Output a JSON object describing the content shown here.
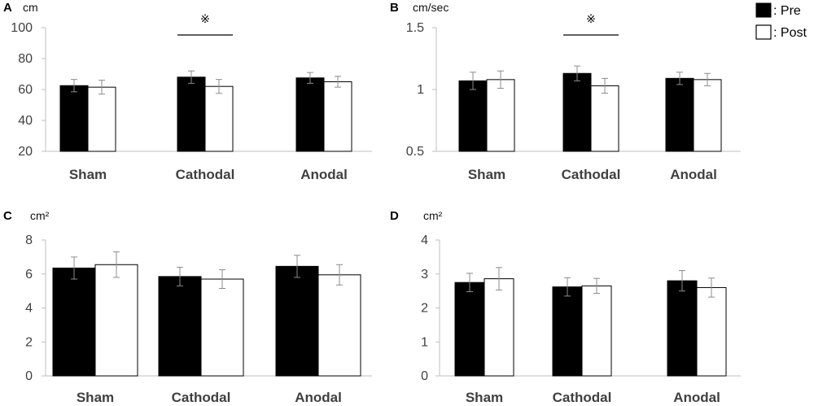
{
  "legend": {
    "items": [
      {
        "label": ": Pre",
        "color": "#000000"
      },
      {
        "label": ": Post",
        "color": "#ffffff"
      }
    ]
  },
  "chart_data": [
    {
      "panel": "A",
      "type": "bar",
      "unit": "cm",
      "categories": [
        "Sham",
        "Cathodal",
        "Anodal"
      ],
      "ylim": [
        20,
        100
      ],
      "yticks": [
        20,
        40,
        60,
        80,
        100
      ],
      "ytick_labels": [
        "20",
        "40",
        "60",
        "80",
        "100"
      ],
      "series": [
        {
          "name": "Pre",
          "values": [
            62.5,
            68,
            67.5
          ],
          "errors": [
            4,
            4,
            3.5
          ]
        },
        {
          "name": "Post",
          "values": [
            61.5,
            62,
            65
          ],
          "errors": [
            4.5,
            4.5,
            3.5
          ]
        }
      ],
      "significance": {
        "category": "Cathodal",
        "symbol": "※"
      }
    },
    {
      "panel": "B",
      "type": "bar",
      "unit": "cm/sec",
      "categories": [
        "Sham",
        "Cathodal",
        "Anodal"
      ],
      "ylim": [
        0.5,
        1.5
      ],
      "yticks": [
        0.5,
        1.0,
        1.5
      ],
      "ytick_labels": [
        "0.5",
        "1",
        "1.5"
      ],
      "series": [
        {
          "name": "Pre",
          "values": [
            1.07,
            1.13,
            1.09
          ],
          "errors": [
            0.07,
            0.06,
            0.05
          ]
        },
        {
          "name": "Post",
          "values": [
            1.08,
            1.03,
            1.08
          ],
          "errors": [
            0.07,
            0.06,
            0.05
          ]
        }
      ],
      "significance": {
        "category": "Cathodal",
        "symbol": "※"
      }
    },
    {
      "panel": "C",
      "type": "bar",
      "unit": "cm²",
      "categories": [
        "Sham",
        "Cathodal",
        "Anodal"
      ],
      "ylim": [
        0,
        8
      ],
      "yticks": [
        0,
        2,
        4,
        6,
        8
      ],
      "ytick_labels": [
        "0",
        "2",
        "4",
        "6",
        "8"
      ],
      "series": [
        {
          "name": "Pre",
          "values": [
            6.35,
            5.85,
            6.45
          ],
          "errors": [
            0.65,
            0.55,
            0.65
          ]
        },
        {
          "name": "Post",
          "values": [
            6.55,
            5.7,
            5.95
          ],
          "errors": [
            0.75,
            0.55,
            0.6
          ]
        }
      ]
    },
    {
      "panel": "D",
      "type": "bar",
      "unit": "cm²",
      "categories": [
        "Sham",
        "Cathodal",
        "Anodal"
      ],
      "ylim": [
        0,
        4
      ],
      "yticks": [
        0,
        1,
        2,
        3,
        4
      ],
      "ytick_labels": [
        "0",
        "1",
        "2",
        "3",
        "4"
      ],
      "series": [
        {
          "name": "Pre",
          "values": [
            2.75,
            2.62,
            2.8
          ],
          "errors": [
            0.27,
            0.27,
            0.3
          ]
        },
        {
          "name": "Post",
          "values": [
            2.86,
            2.65,
            2.6
          ],
          "errors": [
            0.33,
            0.22,
            0.28
          ]
        }
      ]
    }
  ]
}
